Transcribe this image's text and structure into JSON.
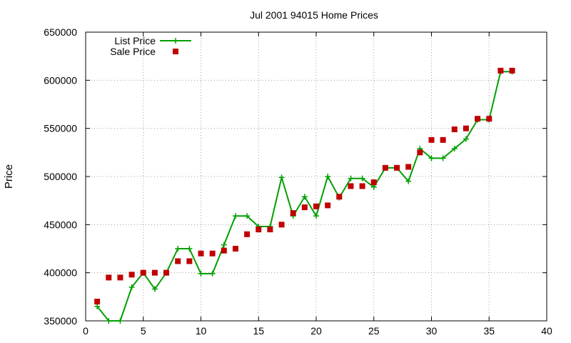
{
  "chart_data": {
    "type": "line",
    "title": "Jul 2001 94015 Home Prices",
    "xlabel": "",
    "ylabel": "Price",
    "xlim": [
      0,
      40
    ],
    "ylim": [
      350000,
      650000
    ],
    "xticks": [
      0,
      5,
      10,
      15,
      20,
      25,
      30,
      35,
      40
    ],
    "yticks": [
      350000,
      400000,
      450000,
      500000,
      550000,
      600000,
      650000
    ],
    "grid": true,
    "legend_position": "top-left",
    "series": [
      {
        "name": "List Price",
        "style": "line-cross",
        "color": "#00a000",
        "x": [
          1,
          2,
          3,
          4,
          5,
          6,
          7,
          8,
          9,
          10,
          11,
          12,
          13,
          14,
          15,
          16,
          17,
          18,
          19,
          20,
          21,
          22,
          23,
          24,
          25,
          26,
          27,
          28,
          29,
          30,
          31,
          32,
          33,
          34,
          35,
          36,
          37
        ],
        "y": [
          365000,
          350000,
          350000,
          385000,
          400000,
          383000,
          400000,
          425000,
          425000,
          399000,
          399000,
          429000,
          459000,
          459000,
          448000,
          448000,
          499000,
          459000,
          479000,
          459000,
          500000,
          478000,
          498000,
          498000,
          489000,
          509000,
          509000,
          495000,
          529000,
          519000,
          519000,
          529000,
          539000,
          559000,
          559000,
          609000,
          609000
        ]
      },
      {
        "name": "Sale Price",
        "style": "square",
        "color": "#c00000",
        "x": [
          1,
          2,
          3,
          4,
          5,
          6,
          7,
          8,
          9,
          10,
          11,
          12,
          13,
          14,
          15,
          16,
          17,
          18,
          19,
          20,
          21,
          22,
          23,
          24,
          25,
          26,
          27,
          28,
          29,
          30,
          31,
          32,
          33,
          34,
          35,
          36,
          37
        ],
        "y": [
          370000,
          395000,
          395000,
          398000,
          400000,
          400000,
          400000,
          412000,
          412000,
          420000,
          420000,
          423000,
          425000,
          440000,
          445000,
          445000,
          450000,
          462000,
          468000,
          469000,
          470000,
          479000,
          490000,
          490000,
          494000,
          509000,
          509000,
          510000,
          525000,
          538000,
          538000,
          549000,
          550000,
          560000,
          560000,
          610000,
          610000
        ]
      }
    ]
  }
}
